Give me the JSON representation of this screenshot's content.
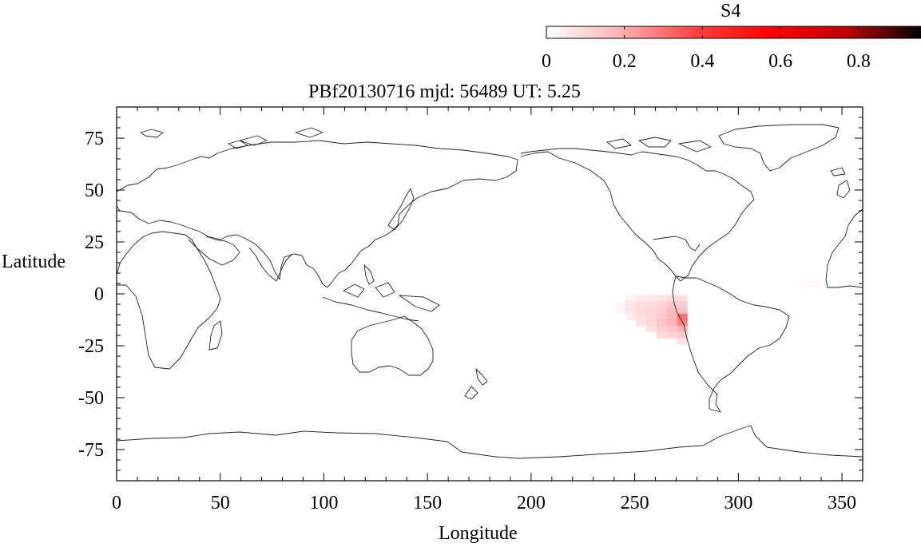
{
  "title": "PBf20130716  mjd: 56489  UT:   5.25",
  "colorbar": {
    "label": "S4",
    "ticks": [
      "0",
      "0.2",
      "0.4",
      "0.6",
      "0.8"
    ],
    "tick_values": [
      0,
      0.2,
      0.4,
      0.6,
      0.8
    ],
    "range": [
      0,
      0.96
    ],
    "colors": [
      "#ffffff",
      "#ffb0b0",
      "#ff4040",
      "#ff0000",
      "#c00000",
      "#000000"
    ]
  },
  "axes": {
    "xlabel": "Longitude",
    "ylabel": "Latitude",
    "xticks": [
      "0",
      "50",
      "100",
      "150",
      "200",
      "250",
      "300",
      "350"
    ],
    "xtick_values": [
      0,
      50,
      100,
      150,
      200,
      250,
      300,
      350
    ],
    "yticks": [
      "75",
      "50",
      "25",
      "0",
      "-25",
      "-50",
      "-75"
    ],
    "ytick_values": [
      75,
      50,
      25,
      0,
      -25,
      -50,
      -75
    ],
    "xlim": [
      0,
      360
    ],
    "ylim": [
      -90,
      90
    ]
  },
  "map_data": {
    "projection": "equirectangular",
    "basemap": "world coastline outlines",
    "s4_cells": [
      {
        "lon": 248,
        "lat": -2,
        "s4": 0.03
      },
      {
        "lon": 253,
        "lat": -2,
        "s4": 0.05
      },
      {
        "lon": 258,
        "lat": -2,
        "s4": 0.06
      },
      {
        "lon": 263,
        "lat": -2,
        "s4": 0.07
      },
      {
        "lon": 268,
        "lat": -2,
        "s4": 0.09
      },
      {
        "lon": 273,
        "lat": -2,
        "s4": 0.08
      },
      {
        "lon": 243,
        "lat": -5,
        "s4": 0.02
      },
      {
        "lon": 248,
        "lat": -5,
        "s4": 0.06
      },
      {
        "lon": 253,
        "lat": -5,
        "s4": 0.08
      },
      {
        "lon": 258,
        "lat": -5,
        "s4": 0.09
      },
      {
        "lon": 263,
        "lat": -5,
        "s4": 0.11
      },
      {
        "lon": 268,
        "lat": -5,
        "s4": 0.14
      },
      {
        "lon": 273,
        "lat": -5,
        "s4": 0.12
      },
      {
        "lon": 243,
        "lat": -8,
        "s4": 0.03
      },
      {
        "lon": 248,
        "lat": -8,
        "s4": 0.07
      },
      {
        "lon": 253,
        "lat": -8,
        "s4": 0.09
      },
      {
        "lon": 258,
        "lat": -8,
        "s4": 0.1
      },
      {
        "lon": 263,
        "lat": -8,
        "s4": 0.12
      },
      {
        "lon": 268,
        "lat": -8,
        "s4": 0.16
      },
      {
        "lon": 273,
        "lat": -8,
        "s4": 0.15
      },
      {
        "lon": 248,
        "lat": -11,
        "s4": 0.05
      },
      {
        "lon": 253,
        "lat": -11,
        "s4": 0.08
      },
      {
        "lon": 258,
        "lat": -11,
        "s4": 0.1
      },
      {
        "lon": 263,
        "lat": -11,
        "s4": 0.13
      },
      {
        "lon": 268,
        "lat": -11,
        "s4": 0.18
      },
      {
        "lon": 273,
        "lat": -11,
        "s4": 0.3
      },
      {
        "lon": 253,
        "lat": -14,
        "s4": 0.07
      },
      {
        "lon": 258,
        "lat": -14,
        "s4": 0.1
      },
      {
        "lon": 263,
        "lat": -14,
        "s4": 0.14
      },
      {
        "lon": 268,
        "lat": -14,
        "s4": 0.18
      },
      {
        "lon": 273,
        "lat": -14,
        "s4": 0.28
      },
      {
        "lon": 258,
        "lat": -17,
        "s4": 0.08
      },
      {
        "lon": 263,
        "lat": -17,
        "s4": 0.12
      },
      {
        "lon": 268,
        "lat": -17,
        "s4": 0.14
      },
      {
        "lon": 273,
        "lat": -17,
        "s4": 0.18
      },
      {
        "lon": 263,
        "lat": -20,
        "s4": 0.09
      },
      {
        "lon": 268,
        "lat": -20,
        "s4": 0.11
      },
      {
        "lon": 273,
        "lat": -20,
        "s4": 0.13
      },
      {
        "lon": 273,
        "lat": -23,
        "s4": 0.07
      },
      {
        "lon": 333,
        "lat": 5,
        "s4": 0.02
      },
      {
        "lon": 338,
        "lat": 5,
        "s4": 0.02
      }
    ]
  }
}
